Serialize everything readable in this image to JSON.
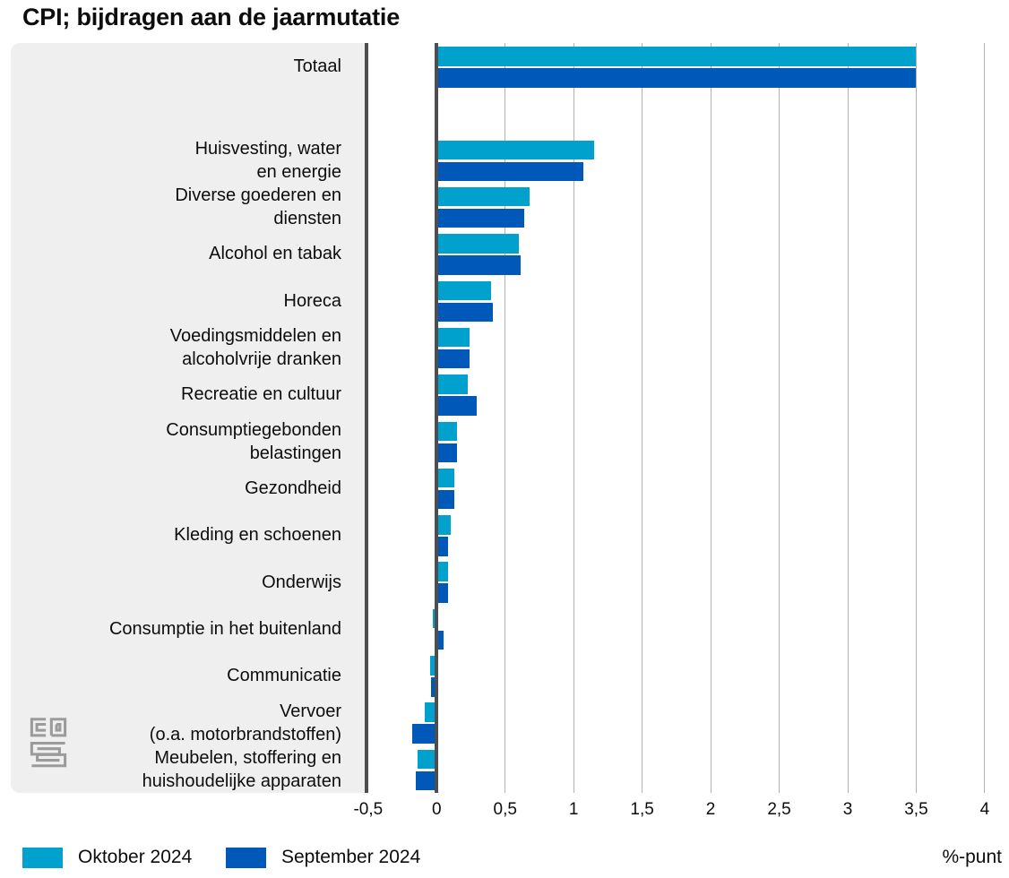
{
  "chart_data": {
    "type": "bar",
    "orientation": "horizontal",
    "title": "CPI; bijdragen aan de jaarmutatie",
    "xlabel_unit": "%-punt",
    "xlim": [
      -0.5,
      4
    ],
    "xticks": [
      -0.5,
      0,
      0.5,
      1,
      1.5,
      2,
      2.5,
      3,
      3.5,
      4
    ],
    "xtick_labels": [
      "-0,5",
      "0",
      "0,5",
      "1",
      "1,5",
      "2",
      "2,5",
      "3",
      "3,5",
      "4"
    ],
    "grid": true,
    "legend_position": "bottom",
    "gap_after_category_index": 0,
    "categories": [
      "Totaal",
      "Huisvesting, water en energie",
      "Diverse goederen en diensten",
      "Alcohol en tabak",
      "Horeca",
      "Voedingsmiddelen en alcoholvrije dranken",
      "Recreatie en cultuur",
      "Consumptiegebonden belastingen",
      "Gezondheid",
      "Kleding en schoenen",
      "Onderwijs",
      "Consumptie in het buitenland",
      "Communicatie",
      "Vervoer (o.a. motorbrandstoffen)",
      "Meubelen, stoffering en huishoudelijke apparaten"
    ],
    "category_display_labels": [
      "Totaal",
      "Huisvesting, water\nen energie",
      "Diverse goederen en\ndiensten",
      "Alcohol en tabak",
      "Horeca",
      "Voedingsmiddelen en\nalcoholvrije dranken",
      "Recreatie en cultuur",
      "Consumptiegebonden\nbelastingen",
      "Gezondheid",
      "Kleding en schoenen",
      "Onderwijs",
      "Consumptie in het buitenland",
      "Communicatie",
      "Vervoer\n(o.a. motorbrandstoffen)",
      "Meubelen, stoffering en\nhuishoudelijke apparaten"
    ],
    "series": [
      {
        "name": "Oktober 2024",
        "color": "#00a1cd",
        "values": [
          3.5,
          1.15,
          0.68,
          0.6,
          0.4,
          0.24,
          0.23,
          0.15,
          0.13,
          0.1,
          0.08,
          -0.03,
          -0.05,
          -0.09,
          -0.14
        ]
      },
      {
        "name": "September 2024",
        "color": "#0059b8",
        "values": [
          3.5,
          1.07,
          0.64,
          0.61,
          0.41,
          0.24,
          0.29,
          0.15,
          0.13,
          0.08,
          0.08,
          0.05,
          -0.04,
          -0.18,
          -0.15
        ]
      }
    ]
  }
}
